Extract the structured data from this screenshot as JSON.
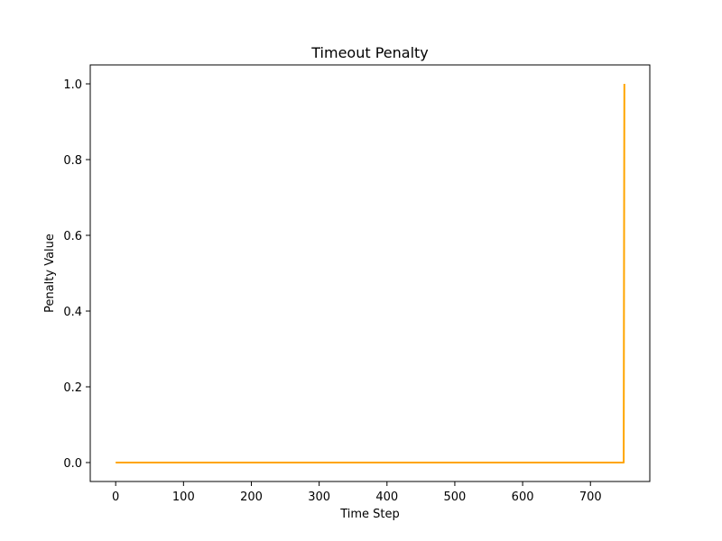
{
  "chart_data": {
    "type": "line",
    "title": "Timeout Penalty",
    "xlabel": "Time Step",
    "ylabel": "Penalty Value",
    "xlim": [
      -37.5,
      787.5
    ],
    "ylim": [
      -0.05,
      1.05
    ],
    "xticks": [
      0,
      100,
      200,
      300,
      400,
      500,
      600,
      700
    ],
    "yticks": [
      0.0,
      0.2,
      0.4,
      0.6,
      0.8,
      1.0
    ],
    "xtick_labels": [
      "0",
      "100",
      "200",
      "300",
      "400",
      "500",
      "600",
      "700"
    ],
    "ytick_labels": [
      "0.0",
      "0.2",
      "0.4",
      "0.6",
      "0.8",
      "1.0"
    ],
    "grid": false,
    "legend": "none",
    "series": [
      {
        "color": "#ffa500",
        "x": [
          0,
          749,
          750
        ],
        "y": [
          0.0,
          0.0,
          1.0
        ]
      }
    ]
  }
}
